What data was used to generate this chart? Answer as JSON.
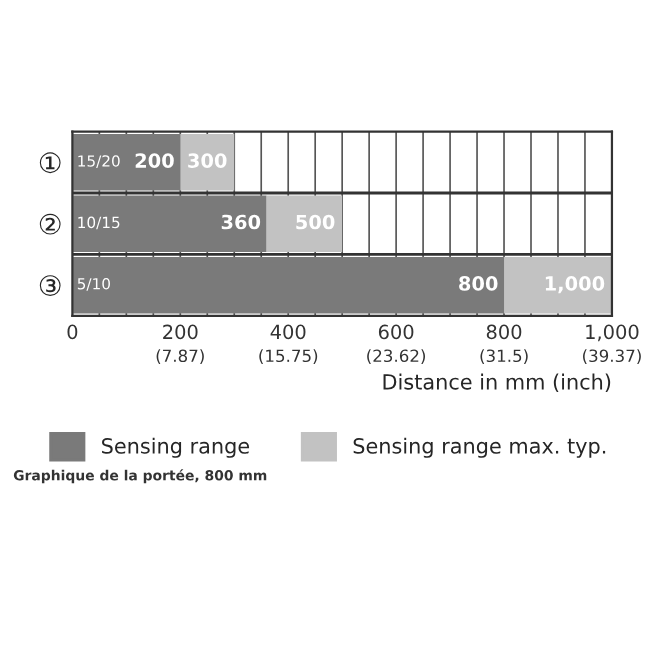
{
  "chart_data": {
    "type": "bar",
    "orientation": "horizontal",
    "stacked": true,
    "categories": [
      "①",
      "②",
      "③"
    ],
    "series": [
      {
        "name": "Sensing range",
        "color": "#7a7a7a",
        "values": [
          200,
          360,
          800
        ],
        "value_labels": [
          "200",
          "360",
          "800"
        ]
      },
      {
        "name": "Sensing range max. typ.",
        "color": "#c2c2c2",
        "values": [
          100,
          140,
          200
        ]
      }
    ],
    "xlim": [
      0,
      1000
    ],
    "xticks": [
      0,
      {
        "value": 50,
        "label": null
      },
      {
        "value": 100,
        "label": null
      },
      {
        "value": 150,
        "label": null
      },
      200,
      {
        "value": 250,
        "label": null
      },
      {
        "value": 300,
        "label": null
      },
      {
        "value": 350,
        "label": null
      },
      400,
      {
        "value": 450,
        "label": null
      },
      {
        "value": 500,
        "label": null
      },
      {
        "value": 550,
        "label": null
      },
      600,
      {
        "value": 650,
        "label": null
      },
      {
        "value": 700,
        "label": null
      },
      {
        "value": 750,
        "label": null
      },
      800,
      {
        "value": 850,
        "label": null
      },
      {
        "value": 900,
        "label": null
      },
      {
        "value": 950,
        "label": null
      },
      {
        "value": 1000,
        "label": "1,000"
      }
    ],
    "x2lim": [
      0,
      39.37
    ],
    "x2ticks": [
      {
        "value": 7.87,
        "label": "(7.87)"
      },
      {
        "value": 15.75,
        "label": "(15.75)"
      },
      {
        "value": 23.62,
        "label": "(23.62)"
      },
      {
        "value": 31.5,
        "label": "(31.5)"
      },
      {
        "value": 39.37,
        "label": "(39.37)"
      }
    ],
    "xlabel": "Distance in mm (inch)",
    "grid": "x",
    "legend": "bottom",
    "annotations": [
      "15/20",
      "10/15",
      "5/10",
      "Graphique de la portée, 800 mm",
      {
        "text": "300",
        "x": 300,
        "y": "①"
      },
      {
        "text": "500",
        "x": 500,
        "y": "②"
      },
      {
        "text": "1,000",
        "x": 1000,
        "y": "③"
      }
    ]
  }
}
